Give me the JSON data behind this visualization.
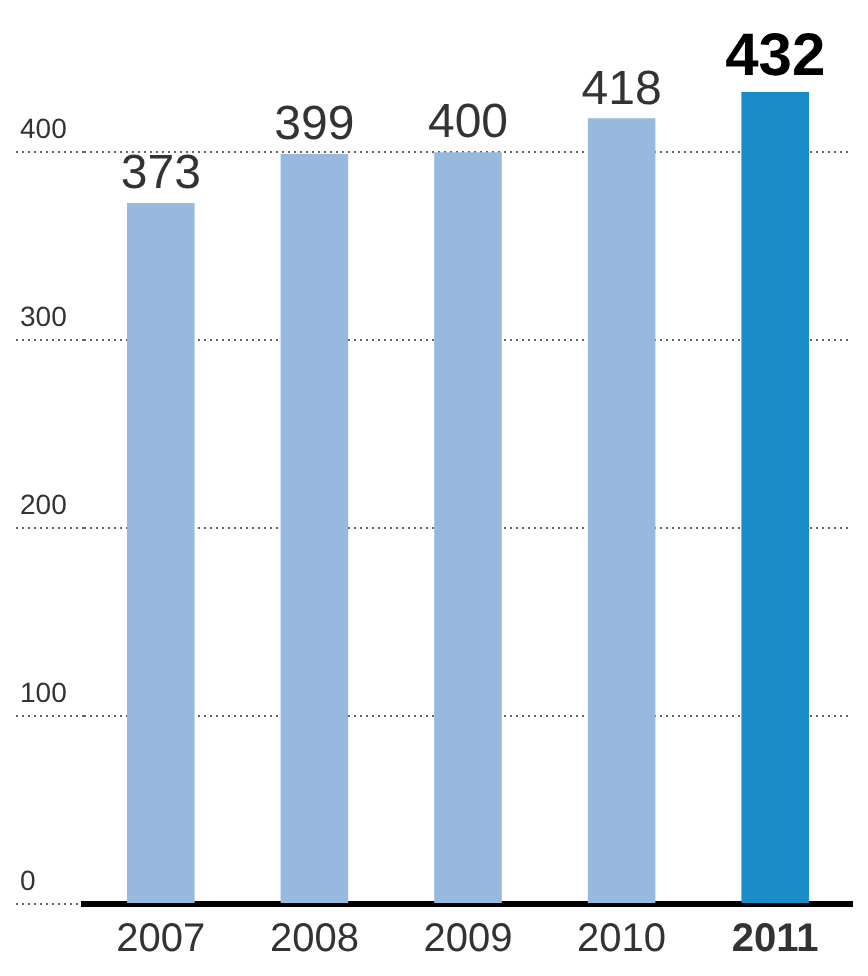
{
  "chart_data": {
    "type": "bar",
    "categories": [
      "2007",
      "2008",
      "2009",
      "2010",
      "2011"
    ],
    "values": [
      373,
      399,
      400,
      418,
      432
    ],
    "colors": [
      "#97b9de",
      "#97b9de",
      "#97b9de",
      "#97b9de",
      "#1a8cc8"
    ],
    "ylim": [
      0,
      432
    ],
    "yticks": [
      0,
      100,
      200,
      300,
      400
    ],
    "grid": "y",
    "data_labels": true
  }
}
